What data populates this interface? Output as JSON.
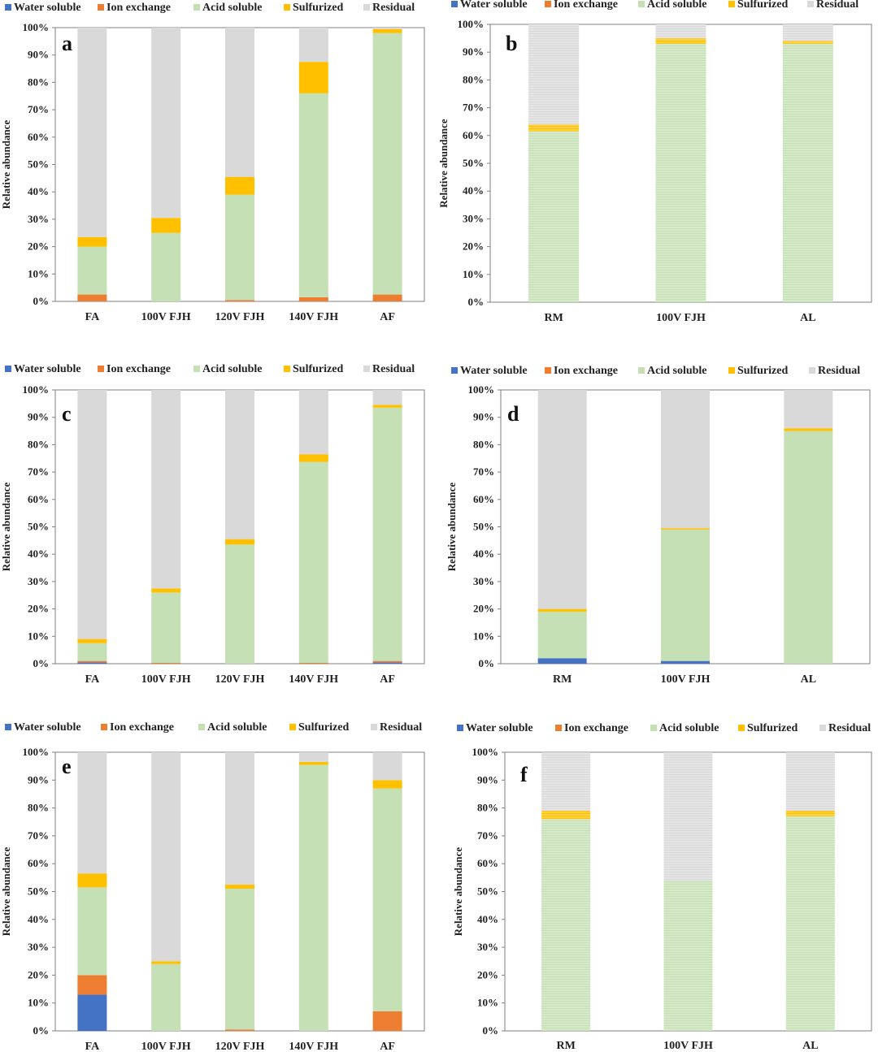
{
  "legend_labels": [
    "Water soluble",
    "Ion exchange",
    "Acid soluble",
    "Sulfurized",
    "Residual"
  ],
  "colors": {
    "water_soluble": "#4472c4",
    "ion_exchange": "#ed7d31",
    "acid_soluble": "#c5e0b4",
    "sulfurized": "#ffc000",
    "residual": "#d9d9d9"
  },
  "chart_data": [
    {
      "type": "bar",
      "stacked": true,
      "panel": "a",
      "ylabel": "Relative abundance",
      "ylim": [
        0,
        100
      ],
      "yticks": [
        "0%",
        "10%",
        "20%",
        "30%",
        "40%",
        "50%",
        "60%",
        "70%",
        "80%",
        "90%",
        "100%"
      ],
      "categories": [
        "FA",
        "100V FJH",
        "120V FJH",
        "140V FJH",
        "AF"
      ],
      "series": [
        {
          "name": "Water soluble",
          "values": [
            0,
            0,
            0,
            0,
            0
          ]
        },
        {
          "name": "Ion exchange",
          "values": [
            2.5,
            0,
            0.5,
            1.5,
            2.5
          ]
        },
        {
          "name": "Acid soluble",
          "values": [
            17.5,
            25,
            38.5,
            74.5,
            95.5
          ]
        },
        {
          "name": "Sulfurized",
          "values": [
            3.5,
            5.5,
            6.5,
            11.5,
            1.5
          ]
        },
        {
          "name": "Residual",
          "values": [
            76.5,
            69.5,
            54.5,
            12.5,
            0.5
          ]
        }
      ]
    },
    {
      "type": "bar",
      "stacked": true,
      "panel": "b",
      "ylabel": "Relative abundance",
      "ylim": [
        0,
        100
      ],
      "yticks": [
        "0%",
        "10%",
        "20%",
        "30%",
        "40%",
        "50%",
        "60%",
        "70%",
        "80%",
        "90%",
        "100%"
      ],
      "categories": [
        "RM",
        "100V FJH",
        "AL"
      ],
      "series": [
        {
          "name": "Water soluble",
          "values": [
            0,
            0,
            0
          ]
        },
        {
          "name": "Ion exchange",
          "values": [
            0,
            0,
            0
          ]
        },
        {
          "name": "Acid soluble",
          "values": [
            61.5,
            93,
            93
          ]
        },
        {
          "name": "Sulfurized",
          "values": [
            2.5,
            2,
            1
          ]
        },
        {
          "name": "Residual",
          "values": [
            36,
            5,
            6
          ]
        }
      ]
    },
    {
      "type": "bar",
      "stacked": true,
      "panel": "c",
      "ylabel": "Relative abundance",
      "ylim": [
        0,
        100
      ],
      "yticks": [
        "0%",
        "10%",
        "20%",
        "30%",
        "40%",
        "50%",
        "60%",
        "70%",
        "80%",
        "90%",
        "100%"
      ],
      "categories": [
        "FA",
        "100V FJH",
        "120V FJH",
        "140V FJH",
        "AF"
      ],
      "series": [
        {
          "name": "Water soluble",
          "values": [
            0.5,
            0,
            0,
            0,
            0.5
          ]
        },
        {
          "name": "Ion exchange",
          "values": [
            0.5,
            0.3,
            0,
            0.3,
            0.5
          ]
        },
        {
          "name": "Acid soluble",
          "values": [
            6.5,
            25.7,
            43.5,
            73.4,
            92.5
          ]
        },
        {
          "name": "Sulfurized",
          "values": [
            1.5,
            1.5,
            2,
            2.8,
            1
          ]
        },
        {
          "name": "Residual",
          "values": [
            91,
            72.5,
            54.5,
            23.5,
            5.5
          ]
        }
      ]
    },
    {
      "type": "bar",
      "stacked": true,
      "panel": "d",
      "ylabel": "Relative abundance",
      "ylim": [
        0,
        100
      ],
      "yticks": [
        "0%",
        "10%",
        "20%",
        "30%",
        "40%",
        "50%",
        "60%",
        "70%",
        "80%",
        "90%",
        "100%"
      ],
      "categories": [
        "RM",
        "100V FJH",
        "AL"
      ],
      "series": [
        {
          "name": "Water soluble",
          "values": [
            2,
            1,
            0
          ]
        },
        {
          "name": "Ion exchange",
          "values": [
            0,
            0,
            0
          ]
        },
        {
          "name": "Acid soluble",
          "values": [
            17,
            48,
            85
          ]
        },
        {
          "name": "Sulfurized",
          "values": [
            1,
            0.5,
            1
          ]
        },
        {
          "name": "Residual",
          "values": [
            80,
            50.5,
            14
          ]
        }
      ]
    },
    {
      "type": "bar",
      "stacked": true,
      "panel": "e",
      "ylabel": "Relative abundance",
      "ylim": [
        0,
        100
      ],
      "yticks": [
        "0%",
        "10%",
        "20%",
        "30%",
        "40%",
        "50%",
        "60%",
        "70%",
        "80%",
        "90%",
        "100%"
      ],
      "categories": [
        "FA",
        "100V FJH",
        "120V FJH",
        "140V FJH",
        "AF"
      ],
      "series": [
        {
          "name": "Water soluble",
          "values": [
            13,
            0,
            0,
            0,
            0
          ]
        },
        {
          "name": "Ion exchange",
          "values": [
            7,
            0,
            0.5,
            0,
            7
          ]
        },
        {
          "name": "Acid soluble",
          "values": [
            31.5,
            24,
            50.5,
            95.5,
            80
          ]
        },
        {
          "name": "Sulfurized",
          "values": [
            5,
            1,
            1.5,
            1,
            3
          ]
        },
        {
          "name": "Residual",
          "values": [
            43.5,
            75,
            47.5,
            3.5,
            10
          ]
        }
      ]
    },
    {
      "type": "bar",
      "stacked": true,
      "panel": "f",
      "ylabel": "Relative abundance",
      "ylim": [
        0,
        100
      ],
      "yticks": [
        "0%",
        "10%",
        "20%",
        "30%",
        "40%",
        "50%",
        "60%",
        "70%",
        "80%",
        "90%",
        "100%"
      ],
      "categories": [
        "RM",
        "100V FJH",
        "AL"
      ],
      "series": [
        {
          "name": "Water soluble",
          "values": [
            0,
            0,
            0
          ]
        },
        {
          "name": "Ion exchange",
          "values": [
            0,
            0,
            0
          ]
        },
        {
          "name": "Acid soluble",
          "values": [
            76,
            54,
            77
          ]
        },
        {
          "name": "Sulfurized",
          "values": [
            3,
            0,
            2
          ]
        },
        {
          "name": "Residual",
          "values": [
            21,
            46,
            21
          ]
        }
      ]
    }
  ]
}
